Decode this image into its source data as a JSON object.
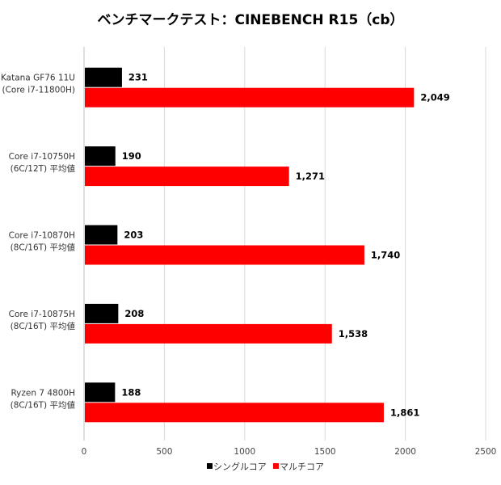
{
  "chart_data": {
    "type": "bar",
    "orientation": "horizontal",
    "title": "ベンチマークテスト：CINEBENCH R15（cb）",
    "categories": [
      [
        "Katana GF76 11U",
        "(Core i7-11800H)"
      ],
      [
        "Core i7-10750H",
        "(6C/12T) 平均値"
      ],
      [
        "Core i7-10870H",
        "(8C/16T) 平均値"
      ],
      [
        "Core i7-10875H",
        "(8C/16T) 平均値"
      ],
      [
        "Ryzen 7 4800H",
        "(8C/16T) 平均値"
      ]
    ],
    "series": [
      {
        "name": "シングルコア",
        "color": "#000000",
        "values": [
          231,
          190,
          203,
          208,
          188
        ],
        "labels": [
          "231",
          "190",
          "203",
          "208",
          "188"
        ]
      },
      {
        "name": "マルチコア",
        "color": "#ff0000",
        "values": [
          2049,
          1271,
          1740,
          1538,
          1861
        ],
        "labels": [
          "2,049",
          "1,271",
          "1,740",
          "1,538",
          "1,861"
        ]
      }
    ],
    "xlim": [
      0,
      2500
    ],
    "xticks": [
      0,
      500,
      1000,
      1500,
      2000,
      2500
    ],
    "xtick_labels": [
      "0",
      "500",
      "1000",
      "1500",
      "2000",
      "2500"
    ],
    "grid": true,
    "legend_position": "bottom"
  }
}
